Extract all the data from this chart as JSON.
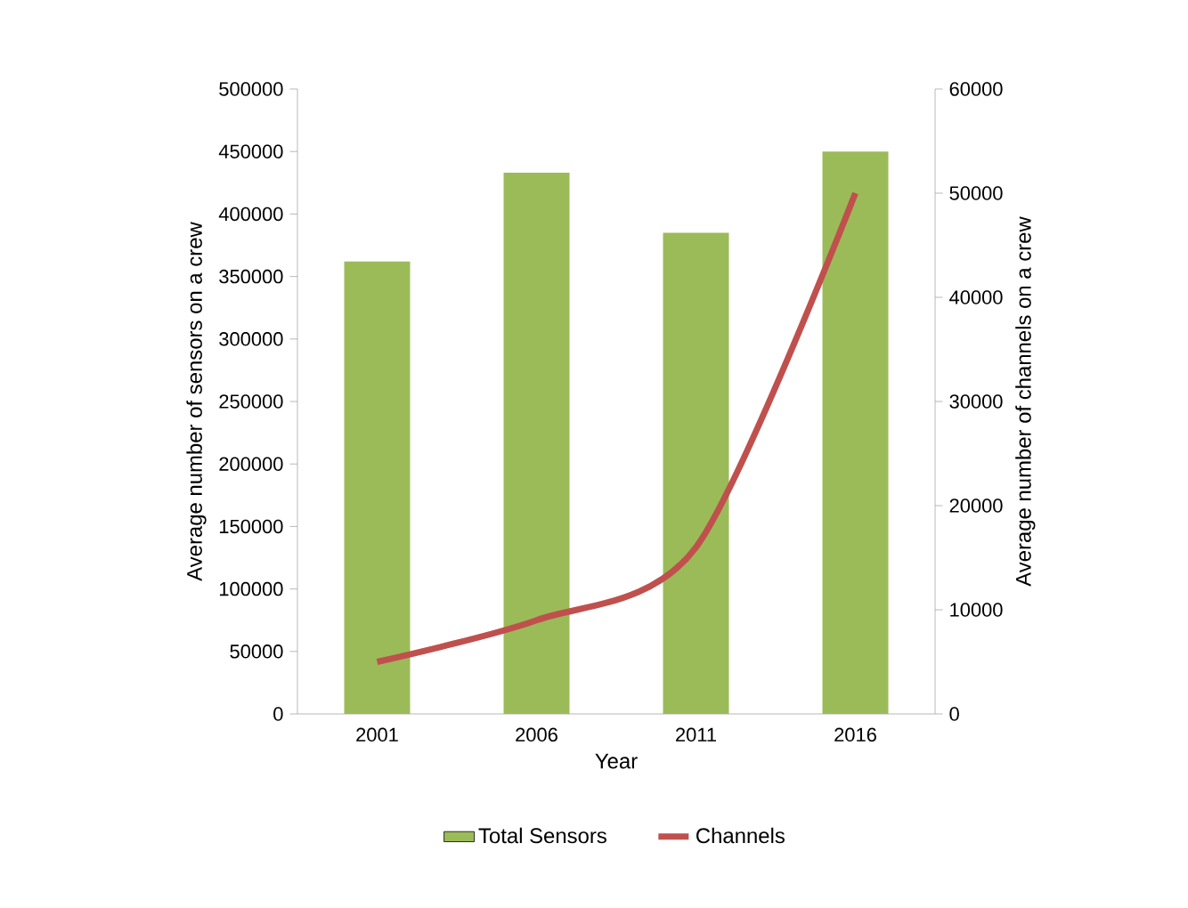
{
  "chart_data": {
    "type": "bar",
    "xlabel": "Year",
    "ylabel": "Average number of sensors on a crew",
    "y2label": "Average number of channels on a crew",
    "categories": [
      "2001",
      "2006",
      "2011",
      "2016"
    ],
    "series": [
      {
        "name": "Total Sensors",
        "color": "#9bbb59",
        "values": [
          362000,
          433000,
          385000,
          450000
        ]
      },
      {
        "name": "Channels",
        "type": "line",
        "axis": "y2",
        "color": "#c0504d",
        "values": [
          5000,
          9000,
          16000,
          50000
        ]
      }
    ],
    "ylim": [
      0,
      500000
    ],
    "yticks": [
      0,
      50000,
      100000,
      150000,
      200000,
      250000,
      300000,
      350000,
      400000,
      450000,
      500000
    ],
    "y2lim": [
      0,
      60000
    ],
    "y2ticks": [
      0,
      10000,
      20000,
      30000,
      40000,
      50000,
      60000
    ],
    "legend": "bottom",
    "grid": false,
    "marker": "none"
  }
}
